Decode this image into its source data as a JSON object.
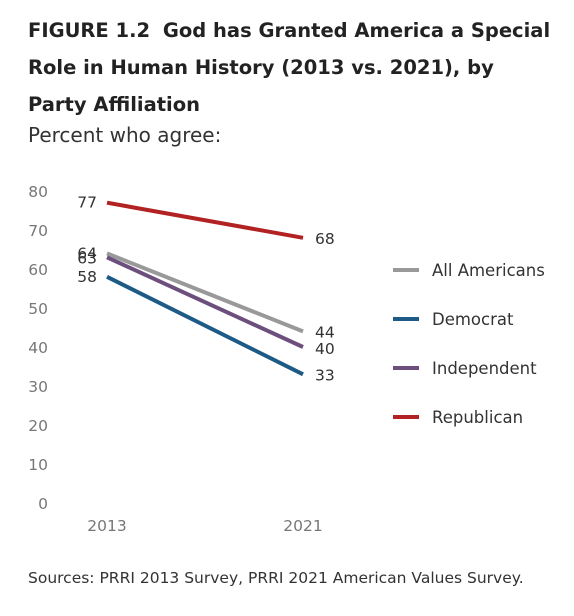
{
  "figure": {
    "number": "FIGURE 1.2",
    "title": "God has Granted America a Special Role in Human History (2013 vs. 2021), by Party Affiliation",
    "subtitle": "Percent who agree:",
    "source": "Sources: PRRI 2013 Survey, PRRI 2021 American Values Survey."
  },
  "chart_data": {
    "type": "line",
    "x": [
      "2013",
      "2021"
    ],
    "ylim": [
      0,
      80
    ],
    "yticks": [
      0,
      10,
      20,
      30,
      40,
      50,
      60,
      70,
      80
    ],
    "grid": false,
    "legend_position": "right",
    "series": [
      {
        "name": "All Americans",
        "values": [
          64,
          44
        ],
        "color": "#999999"
      },
      {
        "name": "Democrat",
        "values": [
          58,
          33
        ],
        "color": "#1d5a85"
      },
      {
        "name": "Independent",
        "values": [
          63,
          40
        ],
        "color": "#6c4f7d"
      },
      {
        "name": "Republican",
        "values": [
          77,
          68
        ],
        "color": "#b22222"
      }
    ]
  }
}
